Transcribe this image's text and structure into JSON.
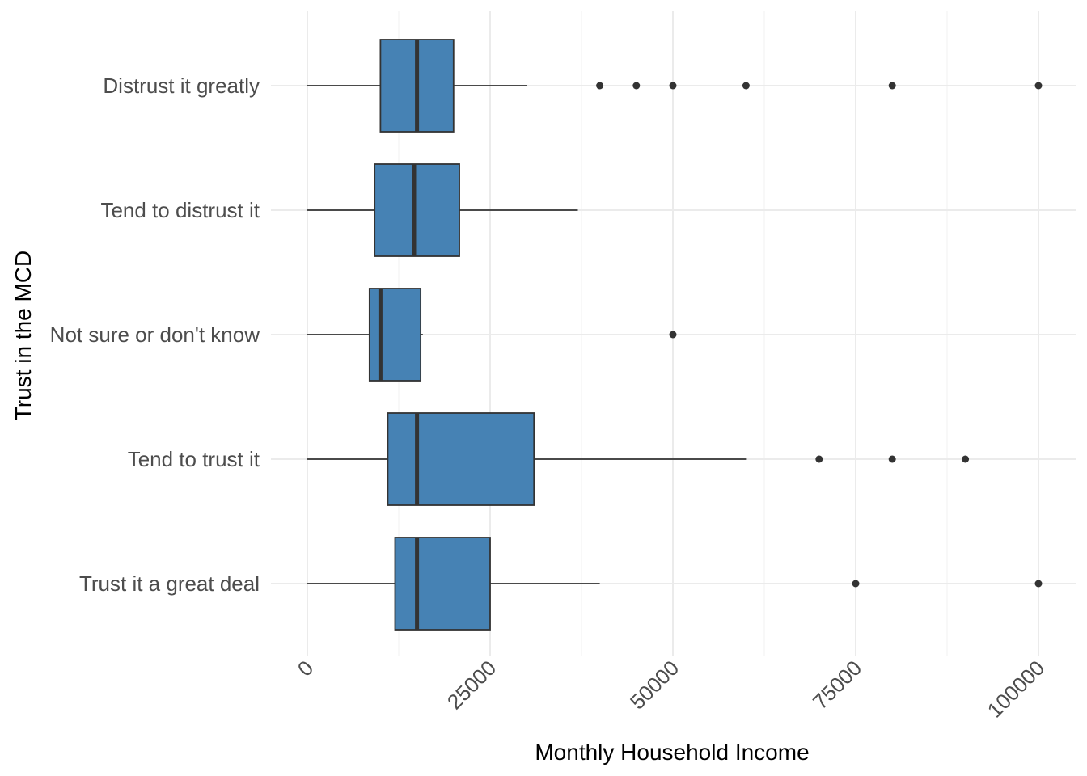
{
  "chart_data": {
    "type": "boxplot",
    "orientation": "horizontal",
    "title": "",
    "xlabel": "Monthly Household Income",
    "ylabel": "Trust in the MCD",
    "xlim": [
      0,
      100000
    ],
    "x_ticks": [
      0,
      25000,
      50000,
      75000,
      100000
    ],
    "x_tick_labels": [
      "0",
      "25000",
      "50000",
      "75000",
      "100000"
    ],
    "grid": true,
    "legend": "none",
    "box_fill": "#4682B4",
    "line_color": "#333333",
    "categories": [
      "Distrust it greatly",
      "Tend to distrust it",
      "Not sure or don't know",
      "Tend to trust it",
      "Trust it a great deal"
    ],
    "boxes": [
      {
        "category": "Distrust it greatly",
        "min": 0,
        "q1": 10000,
        "median": 15000,
        "q3": 20000,
        "max": 30000,
        "outliers": [
          40000,
          45000,
          50000,
          60000,
          80000,
          100000
        ]
      },
      {
        "category": "Tend to distrust it",
        "min": 0,
        "q1": 9200,
        "median": 14600,
        "q3": 20800,
        "max": 37000,
        "outliers": []
      },
      {
        "category": "Not sure or don't know",
        "min": 0,
        "q1": 8500,
        "median": 10000,
        "q3": 15500,
        "max": 15800,
        "outliers": [
          50000
        ]
      },
      {
        "category": "Tend to trust it",
        "min": 0,
        "q1": 11000,
        "median": 15000,
        "q3": 31000,
        "max": 60000,
        "outliers": [
          70000,
          80000,
          90000
        ]
      },
      {
        "category": "Trust it a great deal",
        "min": 0,
        "q1": 12000,
        "median": 15000,
        "q3": 25000,
        "max": 40000,
        "outliers": [
          75000,
          100000
        ]
      }
    ]
  }
}
